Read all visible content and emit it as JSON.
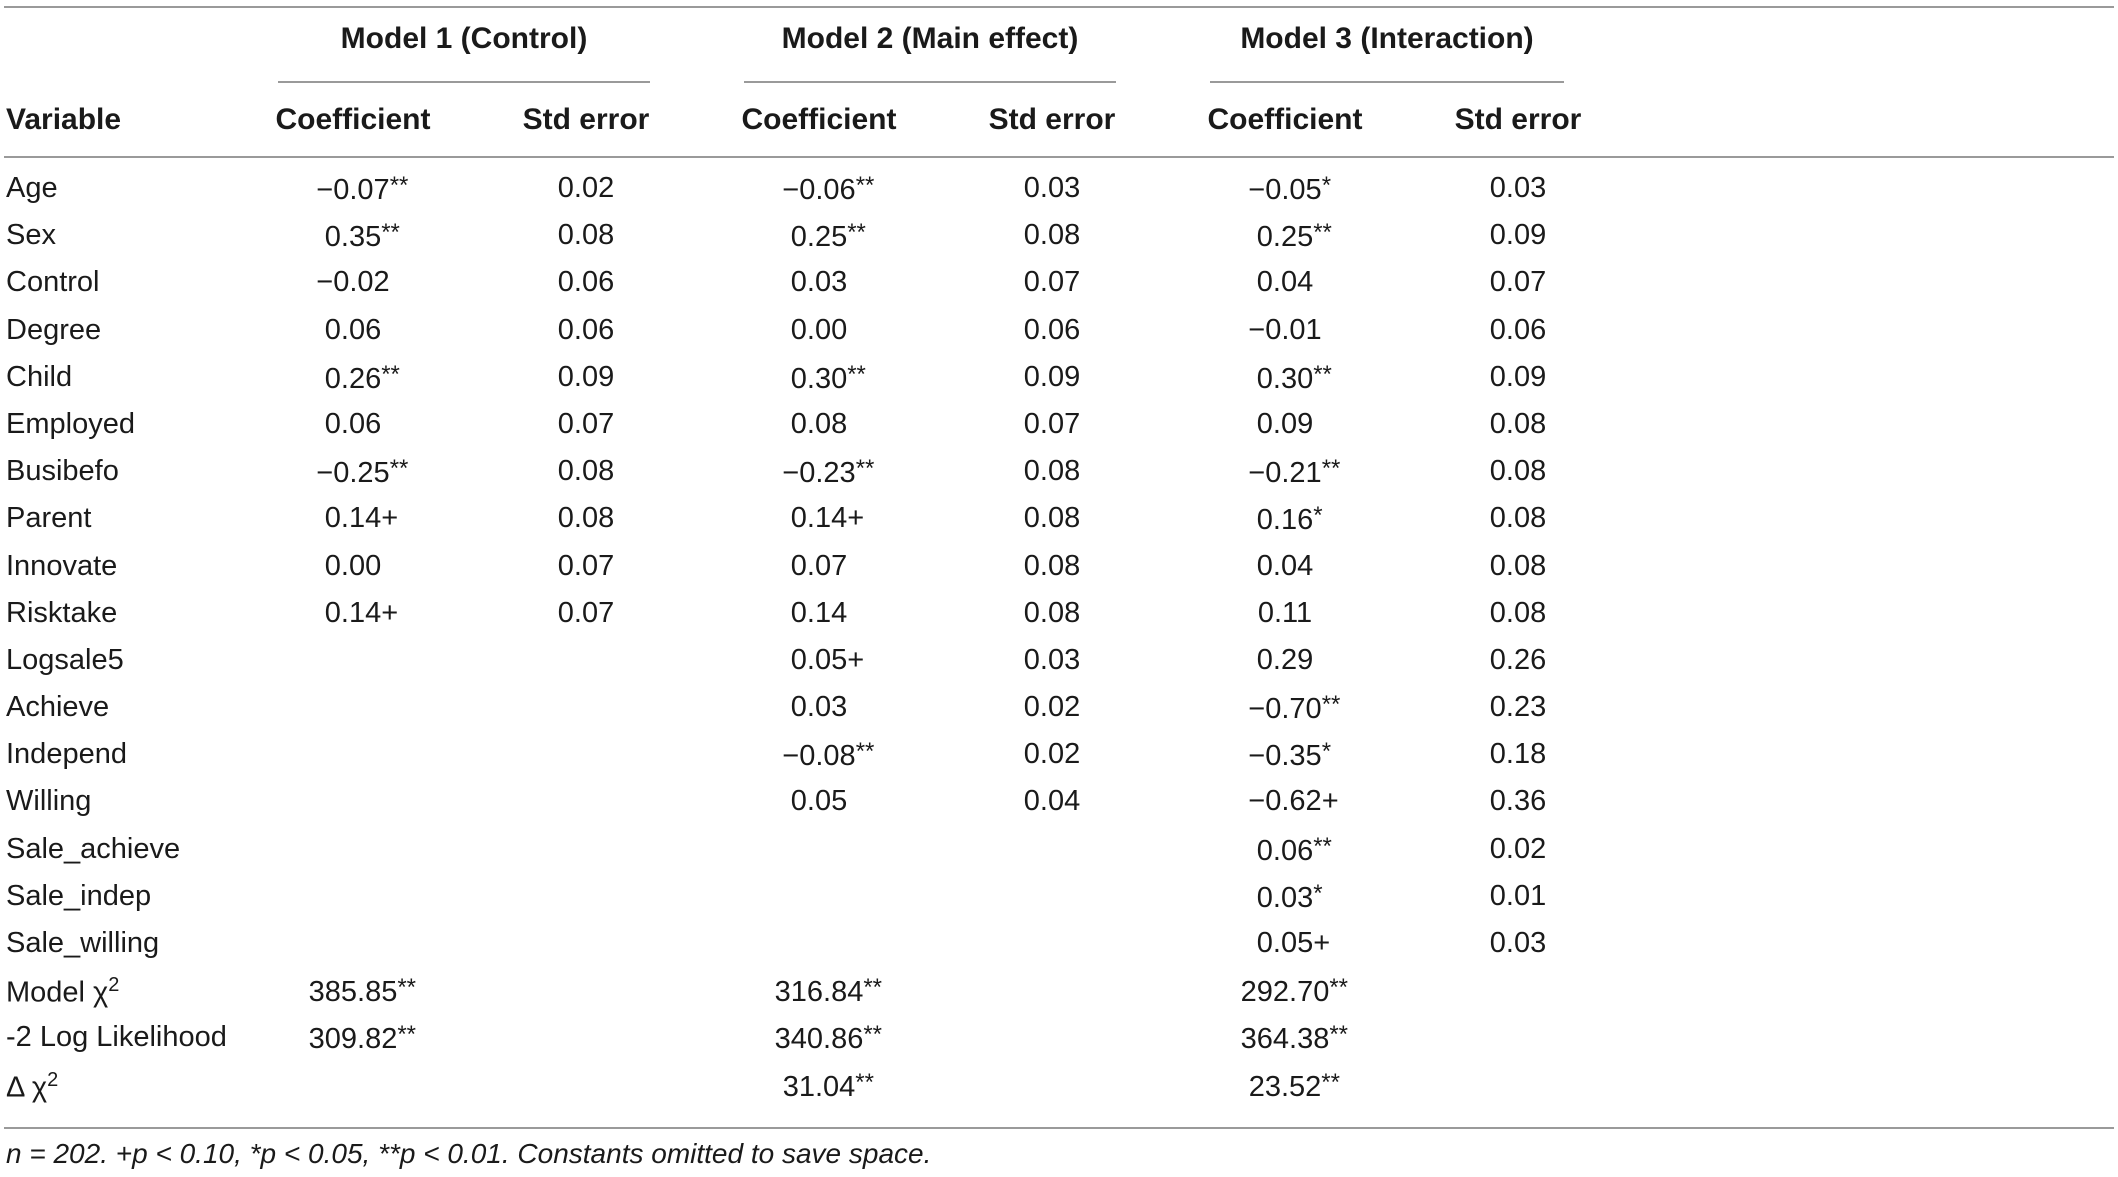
{
  "table": {
    "groups": [
      {
        "label": "Model 1 (Control)"
      },
      {
        "label": "Model 2 (Main effect)"
      },
      {
        "label": "Model 3 (Interaction)"
      }
    ],
    "variable_header": "Variable",
    "coef_header": "Coefficient",
    "se_header": "Std error",
    "rows": [
      {
        "var": "Age",
        "cells": [
          [
            "−0.07",
            "**"
          ],
          [
            "0.02",
            ""
          ],
          [
            "−0.06",
            "**"
          ],
          [
            "0.03",
            ""
          ],
          [
            "−0.05",
            "*"
          ],
          [
            "0.03",
            ""
          ]
        ]
      },
      {
        "var": "Sex",
        "cells": [
          [
            "0.35",
            "**"
          ],
          [
            "0.08",
            ""
          ],
          [
            "0.25",
            "**"
          ],
          [
            "0.08",
            ""
          ],
          [
            "0.25",
            "**"
          ],
          [
            "0.09",
            ""
          ]
        ]
      },
      {
        "var": "Control",
        "cells": [
          [
            "−0.02",
            ""
          ],
          [
            "0.06",
            ""
          ],
          [
            "0.03",
            ""
          ],
          [
            "0.07",
            ""
          ],
          [
            "0.04",
            ""
          ],
          [
            "0.07",
            ""
          ]
        ]
      },
      {
        "var": "Degree",
        "cells": [
          [
            "0.06",
            ""
          ],
          [
            "0.06",
            ""
          ],
          [
            "0.00",
            ""
          ],
          [
            "0.06",
            ""
          ],
          [
            "−0.01",
            ""
          ],
          [
            "0.06",
            ""
          ]
        ]
      },
      {
        "var": "Child",
        "cells": [
          [
            "0.26",
            "**"
          ],
          [
            "0.09",
            ""
          ],
          [
            "0.30",
            "**"
          ],
          [
            "0.09",
            ""
          ],
          [
            "0.30",
            "**"
          ],
          [
            "0.09",
            ""
          ]
        ]
      },
      {
        "var": "Employed",
        "cells": [
          [
            "0.06",
            ""
          ],
          [
            "0.07",
            ""
          ],
          [
            "0.08",
            ""
          ],
          [
            "0.07",
            ""
          ],
          [
            "0.09",
            ""
          ],
          [
            "0.08",
            ""
          ]
        ]
      },
      {
        "var": "Busibefo",
        "cells": [
          [
            "−0.25",
            "**"
          ],
          [
            "0.08",
            ""
          ],
          [
            "−0.23",
            "**"
          ],
          [
            "0.08",
            ""
          ],
          [
            "−0.21",
            "**"
          ],
          [
            "0.08",
            ""
          ]
        ]
      },
      {
        "var": "Parent",
        "cells": [
          [
            "0.14",
            "+"
          ],
          [
            "0.08",
            ""
          ],
          [
            "0.14",
            "+"
          ],
          [
            "0.08",
            ""
          ],
          [
            "0.16",
            "*"
          ],
          [
            "0.08",
            ""
          ]
        ]
      },
      {
        "var": "Innovate",
        "cells": [
          [
            "0.00",
            ""
          ],
          [
            "0.07",
            ""
          ],
          [
            "0.07",
            ""
          ],
          [
            "0.08",
            ""
          ],
          [
            "0.04",
            ""
          ],
          [
            "0.08",
            ""
          ]
        ]
      },
      {
        "var": "Risktake",
        "cells": [
          [
            "0.14",
            "+"
          ],
          [
            "0.07",
            ""
          ],
          [
            "0.14",
            ""
          ],
          [
            "0.08",
            ""
          ],
          [
            "0.11",
            ""
          ],
          [
            "0.08",
            ""
          ]
        ]
      },
      {
        "var": "Logsale5",
        "cells": [
          [
            "",
            ""
          ],
          [
            "",
            ""
          ],
          [
            "0.05",
            "+"
          ],
          [
            "0.03",
            ""
          ],
          [
            "0.29",
            ""
          ],
          [
            "0.26",
            ""
          ]
        ]
      },
      {
        "var": "Achieve",
        "cells": [
          [
            "",
            ""
          ],
          [
            "",
            ""
          ],
          [
            "0.03",
            ""
          ],
          [
            "0.02",
            ""
          ],
          [
            "−0.70",
            "**"
          ],
          [
            "0.23",
            ""
          ]
        ]
      },
      {
        "var": "Independ",
        "cells": [
          [
            "",
            ""
          ],
          [
            "",
            ""
          ],
          [
            "−0.08",
            "**"
          ],
          [
            "0.02",
            ""
          ],
          [
            "−0.35",
            "*"
          ],
          [
            "0.18",
            ""
          ]
        ]
      },
      {
        "var": "Willing",
        "cells": [
          [
            "",
            ""
          ],
          [
            "",
            ""
          ],
          [
            "0.05",
            ""
          ],
          [
            "0.04",
            ""
          ],
          [
            "−0.62",
            "+"
          ],
          [
            "0.36",
            ""
          ]
        ]
      },
      {
        "var": "Sale_achieve",
        "cells": [
          [
            "",
            ""
          ],
          [
            "",
            ""
          ],
          [
            "",
            ""
          ],
          [
            "",
            ""
          ],
          [
            "0.06",
            "**"
          ],
          [
            "0.02",
            ""
          ]
        ]
      },
      {
        "var": "Sale_indep",
        "cells": [
          [
            "",
            ""
          ],
          [
            "",
            ""
          ],
          [
            "",
            ""
          ],
          [
            "",
            ""
          ],
          [
            "0.03",
            "*"
          ],
          [
            "0.01",
            ""
          ]
        ]
      },
      {
        "var": "Sale_willing",
        "cells": [
          [
            "",
            ""
          ],
          [
            "",
            ""
          ],
          [
            "",
            ""
          ],
          [
            "",
            ""
          ],
          [
            "0.05",
            "+"
          ],
          [
            "0.03",
            ""
          ]
        ]
      }
    ],
    "stat_rows": [
      {
        "var": "Model χ",
        "sup": "2",
        "cells": [
          [
            "385.85",
            "**"
          ],
          [
            "",
            ""
          ],
          [
            "316.84",
            "**"
          ],
          [
            "",
            ""
          ],
          [
            "292.70",
            "**"
          ],
          [
            "",
            ""
          ]
        ]
      },
      {
        "var": "-2 Log Likelihood",
        "sup": "",
        "cells": [
          [
            "309.82",
            "**"
          ],
          [
            "",
            ""
          ],
          [
            "340.86",
            "**"
          ],
          [
            "",
            ""
          ],
          [
            "364.38",
            "**"
          ],
          [
            "",
            ""
          ]
        ]
      },
      {
        "var": "Δ χ",
        "sup": "2",
        "cells": [
          [
            "",
            ""
          ],
          [
            "",
            ""
          ],
          [
            "31.04",
            "**"
          ],
          [
            "",
            ""
          ],
          [
            "23.52",
            "**"
          ],
          [
            "",
            ""
          ]
        ]
      }
    ],
    "note": "n = 202. +p < 0.10, *p < 0.05, **p < 0.01. Constants omitted to save space."
  }
}
